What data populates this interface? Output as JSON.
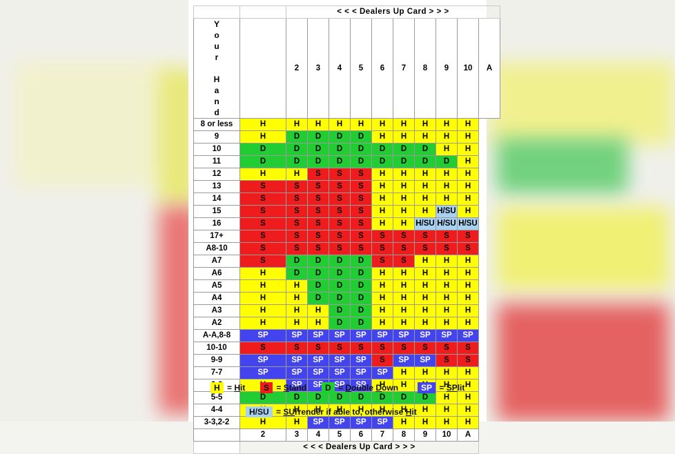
{
  "chart_title": "< < <  Dealers Up Card  > > >",
  "dealer_cards": [
    "2",
    "3",
    "4",
    "5",
    "6",
    "7",
    "8",
    "9",
    "10",
    "A"
  ],
  "side_label_letters": [
    "Y",
    "o",
    "u",
    "r",
    "",
    "H",
    "a",
    "n",
    "d"
  ],
  "colors": {
    "H": "#ffff00",
    "S": "#ee1c1c",
    "D": "#22cc33",
    "SP": "#4444ee",
    "H/SU": "#a8d0f0"
  },
  "rows": [
    {
      "hand": "8 or less",
      "actions": [
        "H",
        "H",
        "H",
        "H",
        "H",
        "H",
        "H",
        "H",
        "H",
        "H"
      ]
    },
    {
      "hand": "9",
      "actions": [
        "H",
        "D",
        "D",
        "D",
        "D",
        "H",
        "H",
        "H",
        "H",
        "H"
      ]
    },
    {
      "hand": "10",
      "actions": [
        "D",
        "D",
        "D",
        "D",
        "D",
        "D",
        "D",
        "D",
        "H",
        "H"
      ]
    },
    {
      "hand": "11",
      "actions": [
        "D",
        "D",
        "D",
        "D",
        "D",
        "D",
        "D",
        "D",
        "D",
        "H"
      ]
    },
    {
      "hand": "12",
      "actions": [
        "H",
        "H",
        "S",
        "S",
        "S",
        "H",
        "H",
        "H",
        "H",
        "H"
      ]
    },
    {
      "hand": "13",
      "actions": [
        "S",
        "S",
        "S",
        "S",
        "S",
        "H",
        "H",
        "H",
        "H",
        "H"
      ]
    },
    {
      "hand": "14",
      "actions": [
        "S",
        "S",
        "S",
        "S",
        "S",
        "H",
        "H",
        "H",
        "H",
        "H"
      ]
    },
    {
      "hand": "15",
      "actions": [
        "S",
        "S",
        "S",
        "S",
        "S",
        "H",
        "H",
        "H",
        "H/SU",
        "H"
      ]
    },
    {
      "hand": "16",
      "actions": [
        "S",
        "S",
        "S",
        "S",
        "S",
        "H",
        "H",
        "H/SU",
        "H/SU",
        "H/SU"
      ]
    },
    {
      "hand": "17+",
      "actions": [
        "S",
        "S",
        "S",
        "S",
        "S",
        "S",
        "S",
        "S",
        "S",
        "S"
      ]
    },
    {
      "hand": "A8-10",
      "actions": [
        "S",
        "S",
        "S",
        "S",
        "S",
        "S",
        "S",
        "S",
        "S",
        "S"
      ]
    },
    {
      "hand": "A7",
      "actions": [
        "S",
        "D",
        "D",
        "D",
        "D",
        "S",
        "S",
        "H",
        "H",
        "H"
      ]
    },
    {
      "hand": "A6",
      "actions": [
        "H",
        "D",
        "D",
        "D",
        "D",
        "H",
        "H",
        "H",
        "H",
        "H"
      ]
    },
    {
      "hand": "A5",
      "actions": [
        "H",
        "H",
        "D",
        "D",
        "D",
        "H",
        "H",
        "H",
        "H",
        "H"
      ]
    },
    {
      "hand": "A4",
      "actions": [
        "H",
        "H",
        "D",
        "D",
        "D",
        "H",
        "H",
        "H",
        "H",
        "H"
      ]
    },
    {
      "hand": "A3",
      "actions": [
        "H",
        "H",
        "H",
        "D",
        "D",
        "H",
        "H",
        "H",
        "H",
        "H"
      ]
    },
    {
      "hand": "A2",
      "actions": [
        "H",
        "H",
        "H",
        "D",
        "D",
        "H",
        "H",
        "H",
        "H",
        "H"
      ]
    },
    {
      "hand": "A-A,8-8",
      "actions": [
        "SP",
        "SP",
        "SP",
        "SP",
        "SP",
        "SP",
        "SP",
        "SP",
        "SP",
        "SP"
      ]
    },
    {
      "hand": "10-10",
      "actions": [
        "S",
        "S",
        "S",
        "S",
        "S",
        "S",
        "S",
        "S",
        "S",
        "S"
      ]
    },
    {
      "hand": "9-9",
      "actions": [
        "SP",
        "SP",
        "SP",
        "SP",
        "SP",
        "S",
        "SP",
        "SP",
        "S",
        "S"
      ]
    },
    {
      "hand": "7-7",
      "actions": [
        "SP",
        "SP",
        "SP",
        "SP",
        "SP",
        "SP",
        "H",
        "H",
        "H",
        "H"
      ]
    },
    {
      "hand": "6-6",
      "actions": [
        "H",
        "SP",
        "SP",
        "SP",
        "SP",
        "H",
        "H",
        "H",
        "H",
        "H"
      ]
    },
    {
      "hand": "5-5",
      "actions": [
        "D",
        "D",
        "D",
        "D",
        "D",
        "D",
        "D",
        "D",
        "H",
        "H"
      ]
    },
    {
      "hand": "4-4",
      "actions": [
        "H",
        "H",
        "H",
        "H",
        "H",
        "H",
        "H",
        "H",
        "H",
        "H"
      ]
    },
    {
      "hand": "3-3,2-2",
      "actions": [
        "H",
        "H",
        "SP",
        "SP",
        "SP",
        "SP",
        "H",
        "H",
        "H",
        "H"
      ]
    }
  ],
  "legend": {
    "hit": {
      "code": "H",
      "eq": " = ",
      "first": "H",
      "rest": "it"
    },
    "stand": {
      "code": "S",
      "eq": " = ",
      "first": "S",
      "rest": "tand"
    },
    "double": {
      "code": "D",
      "eq": " = ",
      "first": "D",
      "rest": "ouble ",
      "first2": "D",
      "rest2": "own"
    },
    "split": {
      "code": "SP",
      "eq": " = ",
      "first": "SP",
      "rest": "lit"
    },
    "surrender": {
      "code": "H/SU",
      "eq": " = ",
      "first": "SU",
      "rest": "rrender if able to, otherwise ",
      "first2": "H",
      "rest2": "it"
    }
  }
}
